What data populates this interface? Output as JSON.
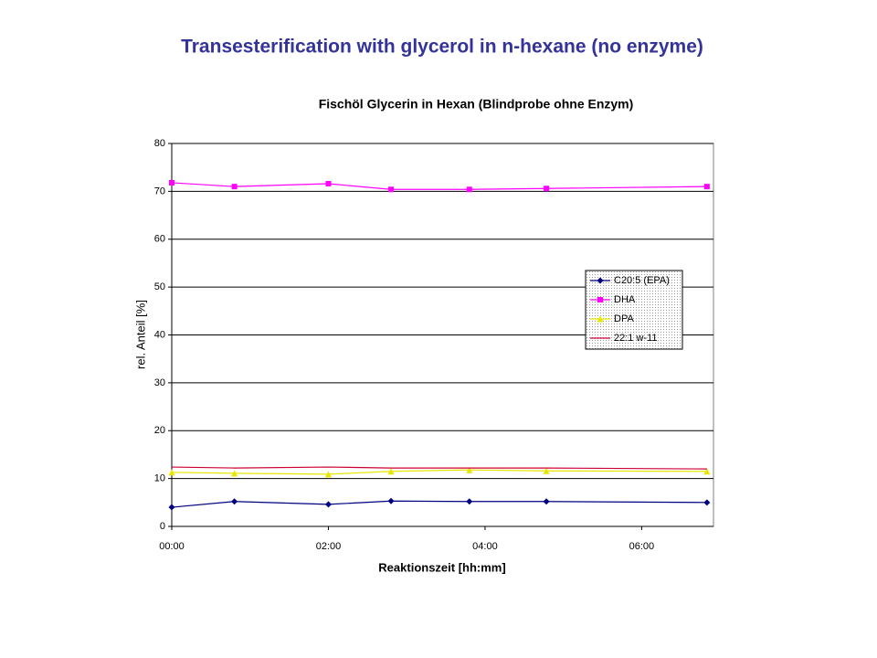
{
  "slide_title": "Transesterification with glycerol in n-hexane (no enzyme)",
  "chart_data": {
    "type": "line",
    "title": "Fischöl Glycerin in Hexan (Blindprobe ohne Enzym)",
    "x_label": "Reaktionszeit [hh:mm]",
    "y_label": "rel. Anteil [%]",
    "x": [
      0,
      48,
      120,
      168,
      228,
      287,
      410
    ],
    "xlim": [
      0,
      415
    ],
    "xticks": [
      {
        "value": 0,
        "label": "00:00"
      },
      {
        "value": 120,
        "label": "02:00"
      },
      {
        "value": 240,
        "label": "04:00"
      },
      {
        "value": 360,
        "label": "06:00"
      }
    ],
    "ylim": [
      0,
      80
    ],
    "yticks": [
      0,
      10,
      20,
      30,
      40,
      50,
      60,
      70,
      80
    ],
    "grid": true,
    "legend": "right",
    "series": [
      {
        "name": "C20:5 (EPA)",
        "color": "#000080",
        "marker": "diamond",
        "values": [
          4.0,
          5.2,
          4.6,
          5.3,
          5.2,
          5.2,
          5.0
        ]
      },
      {
        "name": "DHA",
        "color": "#ff00ff",
        "marker": "square",
        "values": [
          71.8,
          71.0,
          71.6,
          70.4,
          70.4,
          70.6,
          71.0
        ]
      },
      {
        "name": "DPA",
        "color": "#e6e600",
        "marker": "triangle",
        "values": [
          11.3,
          11.1,
          10.9,
          11.5,
          11.8,
          11.6,
          11.5
        ]
      },
      {
        "name": "22:1 w-11",
        "color": "#cc0033",
        "marker": "none",
        "values": [
          12.4,
          12.2,
          12.4,
          12.2,
          12.2,
          12.2,
          12.0
        ]
      }
    ]
  }
}
